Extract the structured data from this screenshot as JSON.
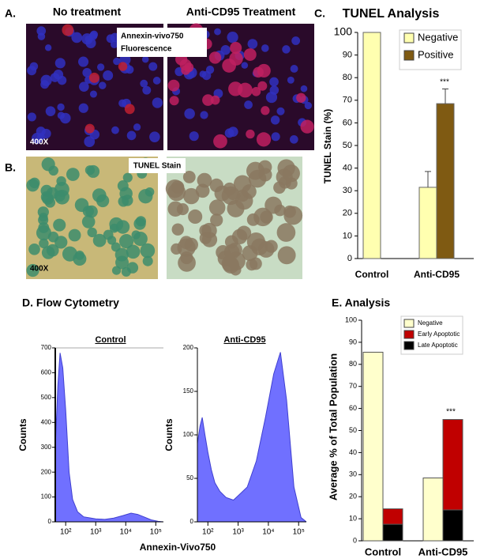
{
  "image_panels": {
    "a": {
      "label": "A.",
      "left_title": "No treatment",
      "right_title": "Anti-CD95 Treatment",
      "stain": [
        "Annexin-vivo750",
        "Fluorescence"
      ],
      "magnification": "400X"
    },
    "b": {
      "label": "B.",
      "stain": "TUNEL Stain",
      "magnification": "400X"
    }
  },
  "flow_cytometry": {
    "heading": "D. Flow Cytometry",
    "xlabel": "Annexin-Vivo750"
  },
  "chart_data": [
    {
      "type": "bar",
      "label": "C.",
      "title": "TUNEL Analysis",
      "ylabel": "TUNEL Stain (%)",
      "categories": [
        "Control",
        "Anti-CD95"
      ],
      "series": [
        {
          "name": "Negative",
          "color": "#ffffb0",
          "values": [
            100,
            31.5
          ],
          "errors": [
            0,
            7
          ]
        },
        {
          "name": "Positive",
          "color": "#7f5a12",
          "values": [
            null,
            68.5
          ],
          "errors": [
            null,
            6.5
          ]
        }
      ],
      "annotation": "***",
      "ylim": [
        0,
        100
      ],
      "yticks": [
        0,
        10,
        20,
        30,
        40,
        50,
        60,
        70,
        80,
        90,
        100
      ]
    },
    {
      "type": "area",
      "title": "Control",
      "ylabel": "Counts",
      "color": "#7070ff",
      "log_x": true,
      "x": [
        45,
        55,
        65,
        80,
        100,
        130,
        170,
        250,
        400,
        700,
        1000,
        2000,
        4000,
        8000,
        15000,
        25000,
        40000,
        70000,
        120000,
        180000
      ],
      "values": [
        300,
        550,
        680,
        620,
        450,
        200,
        90,
        40,
        20,
        15,
        12,
        10,
        15,
        25,
        35,
        30,
        20,
        8,
        2,
        0
      ],
      "xlim": [
        45,
        180000
      ],
      "xticks": [
        {
          "value": 100,
          "label": "10²"
        },
        {
          "value": 1000,
          "label": "10³"
        },
        {
          "value": 10000,
          "label": "10⁴"
        },
        {
          "value": 100000,
          "label": "10⁵"
        }
      ],
      "ylim": [
        0,
        700
      ],
      "yticks": [
        0,
        100,
        200,
        300,
        400,
        500,
        600,
        700
      ]
    },
    {
      "type": "area",
      "title": "Anti-CD95",
      "ylabel": "Counts",
      "color": "#7070ff",
      "log_x": true,
      "x": [
        45,
        55,
        65,
        80,
        100,
        130,
        170,
        250,
        400,
        700,
        1000,
        2000,
        4000,
        8000,
        15000,
        25000,
        40000,
        70000,
        120000,
        180000
      ],
      "values": [
        90,
        110,
        120,
        100,
        80,
        60,
        45,
        35,
        28,
        25,
        30,
        40,
        70,
        120,
        170,
        195,
        140,
        40,
        5,
        0
      ],
      "xlim": [
        45,
        180000
      ],
      "xticks": [
        {
          "value": 100,
          "label": "10²"
        },
        {
          "value": 1000,
          "label": "10³"
        },
        {
          "value": 10000,
          "label": "10⁴"
        },
        {
          "value": 100000,
          "label": "10⁵"
        }
      ],
      "ylim": [
        0,
        200
      ],
      "yticks": [
        0,
        50,
        100,
        150,
        200
      ]
    },
    {
      "type": "stacked-bar",
      "title": "E. Analysis",
      "ylabel": "Average % of Total Population",
      "categories": [
        "Control",
        "Anti-CD95"
      ],
      "series": [
        {
          "name": "Negative",
          "color": "#ffffcc",
          "slot": 0,
          "values": [
            85.5,
            28.5
          ]
        },
        {
          "name": "Early Apoptotic",
          "color": "#c00000",
          "slot": 1,
          "values": [
            7,
            41
          ]
        },
        {
          "name": "Late Apoptotic",
          "color": "#000000",
          "slot": 1,
          "values": [
            7.5,
            14
          ]
        }
      ],
      "annotation": "***",
      "ylim": [
        0,
        100
      ],
      "yticks": [
        0,
        10,
        20,
        30,
        40,
        50,
        60,
        70,
        80,
        90,
        100
      ]
    }
  ]
}
